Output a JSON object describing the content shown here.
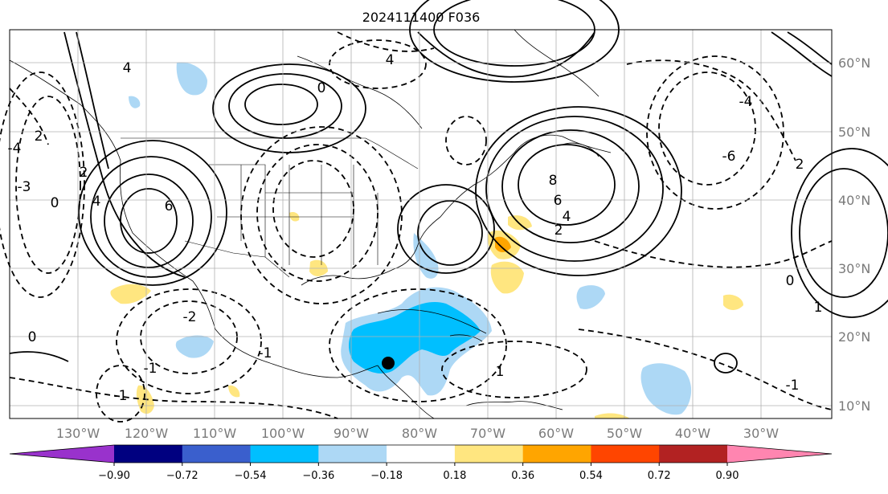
{
  "title": "2024111400 F036",
  "map": {
    "lon_labels": [
      "130°W",
      "120°W",
      "110°W",
      "100°W",
      "90°W",
      "80°W",
      "70°W",
      "60°W",
      "50°W",
      "40°W",
      "30°W"
    ],
    "lat_labels": [
      "60°N",
      "50°N",
      "40°N",
      "30°N",
      "20°N",
      "10°N"
    ],
    "contour_labels": [
      "4",
      "4",
      "2",
      "-3",
      "0",
      "-4",
      "4",
      "6",
      "8",
      "6",
      "4",
      "2",
      "-6",
      "-4",
      "0",
      "2",
      "-2",
      "-1",
      "1",
      "-1",
      "0",
      "-1",
      "1",
      "-1",
      "2",
      "0"
    ],
    "marker": "black-dot",
    "colors": {
      "land_lines": "#000000",
      "positive_contour": "#000000",
      "grid": "#b0b0b0"
    }
  },
  "colorbar": {
    "ticks": [
      "−0.90",
      "−0.72",
      "−0.54",
      "−0.36",
      "−0.18",
      "0.18",
      "0.36",
      "0.54",
      "0.72",
      "0.90"
    ],
    "colors": [
      "#9932cc",
      "#000080",
      "#3a5fcd",
      "#00bfff",
      "#add8f5",
      "#ffffff",
      "#ffe680",
      "#ffa500",
      "#ff4500",
      "#b22222",
      "#ff85b0"
    ]
  }
}
